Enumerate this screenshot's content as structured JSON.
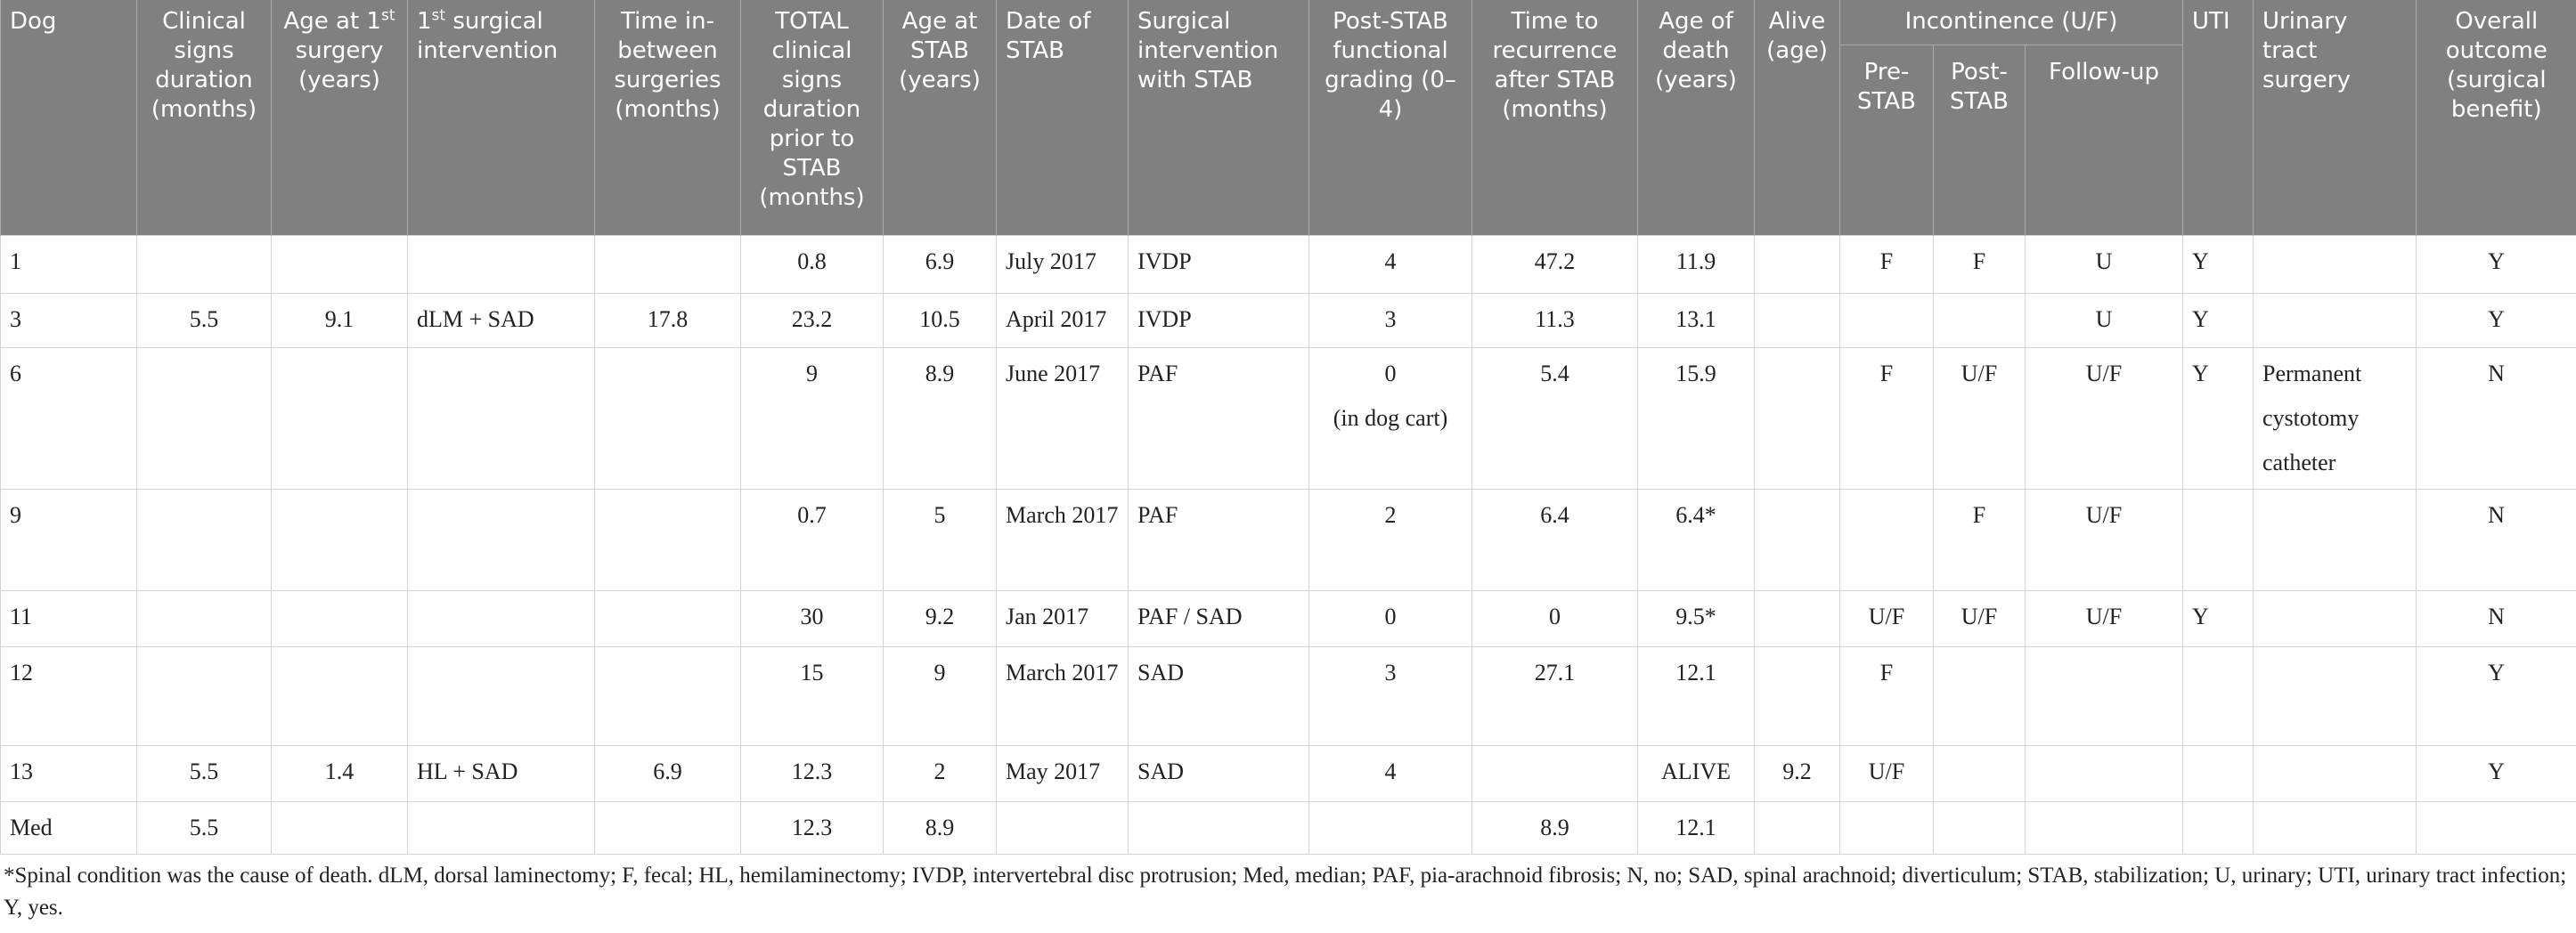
{
  "table": {
    "columns": [
      "Dog",
      "Clinical signs duration (months)",
      {
        "pre": "Age at 1",
        "sup": "st",
        "post": " surgery (years)"
      },
      {
        "pre": "1",
        "sup": "st",
        "post": " surgical intervention"
      },
      "Time in-between surgeries (months)",
      "TOTAL clinical signs duration prior to STAB (months)",
      "Age at STAB (years)",
      "Date of STAB",
      "Surgical intervention with STAB",
      "Post-STAB functional grading (0–4)",
      "Time to recurrence after STAB (months)",
      "Age of death (years)",
      "Alive (age)",
      {
        "label": "Incontinence (U/F)",
        "sub": [
          "Pre-STAB",
          "Post-STAB",
          "Follow-up"
        ]
      },
      "UTI",
      "Urinary tract surgery",
      "Overall outcome (surgical benefit)"
    ],
    "rows": [
      [
        "1",
        null,
        null,
        null,
        null,
        "0.8",
        "6.9",
        "July 2017",
        "IVDP",
        "4",
        "47.2",
        "11.9",
        null,
        "F",
        "F",
        "U",
        "Y",
        null,
        "Y"
      ],
      [
        "3",
        "5.5",
        "9.1",
        "dLM + SAD",
        "17.8",
        "23.2",
        "10.5",
        "April 2017",
        "IVDP",
        "3",
        "11.3",
        "13.1",
        null,
        null,
        null,
        "U",
        "Y",
        null,
        "Y"
      ],
      [
        "6",
        null,
        null,
        null,
        null,
        "9",
        "8.9",
        "June 2017",
        "PAF",
        "0\n(in dog cart)",
        "5.4",
        "15.9",
        null,
        "F",
        "U/F",
        "U/F",
        "Y",
        "Permanent cystotomy catheter",
        "N"
      ],
      [
        "9",
        null,
        null,
        null,
        null,
        "0.7",
        "5",
        "March 2017",
        "PAF",
        "2",
        "6.4",
        "6.4*",
        null,
        null,
        "F",
        "U/F",
        null,
        null,
        "N"
      ],
      [
        "11",
        null,
        null,
        null,
        null,
        "30",
        "9.2",
        "Jan 2017",
        "PAF / SAD",
        "0",
        "0",
        "9.5*",
        null,
        "U/F",
        "U/F",
        "U/F",
        "Y",
        null,
        "N"
      ],
      [
        "12",
        null,
        null,
        null,
        null,
        "15",
        "9",
        "March 2017",
        "SAD",
        "3",
        "27.1",
        "12.1",
        null,
        "F",
        null,
        null,
        null,
        null,
        "Y"
      ],
      [
        "13",
        "5.5",
        "1.4",
        "HL + SAD",
        "6.9",
        "12.3",
        "2",
        "May 2017",
        "SAD",
        "4",
        null,
        "ALIVE",
        "9.2",
        "U/F",
        null,
        null,
        null,
        null,
        "Y"
      ],
      [
        "Med",
        "5.5",
        null,
        null,
        null,
        "12.3",
        "8.9",
        null,
        null,
        null,
        "8.9",
        "12.1",
        null,
        null,
        null,
        null,
        null,
        null,
        null
      ]
    ],
    "footnote": "*Spinal condition was the cause of death. dLM, dorsal laminectomy; F, fecal; HL, hemilaminectomy; IVDP, intervertebral disc protrusion; Med, median; PAF, pia-arachnoid fibrosis; N, no; SAD, spinal arachnoid; diverticulum; STAB, stabilization; U, urinary; UTI, urinary tract infection; Y, yes."
  }
}
